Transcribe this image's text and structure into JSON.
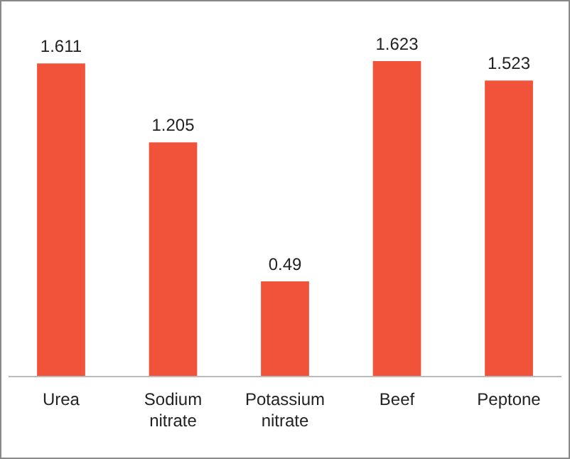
{
  "chart_data": {
    "type": "bar",
    "categories": [
      "Urea",
      "Sodium nitrate",
      "Potassium nitrate",
      "Beef",
      "Peptone"
    ],
    "values": [
      1.611,
      1.205,
      0.49,
      1.623,
      1.523
    ],
    "color": "#f0523a",
    "data_labels": true
  }
}
